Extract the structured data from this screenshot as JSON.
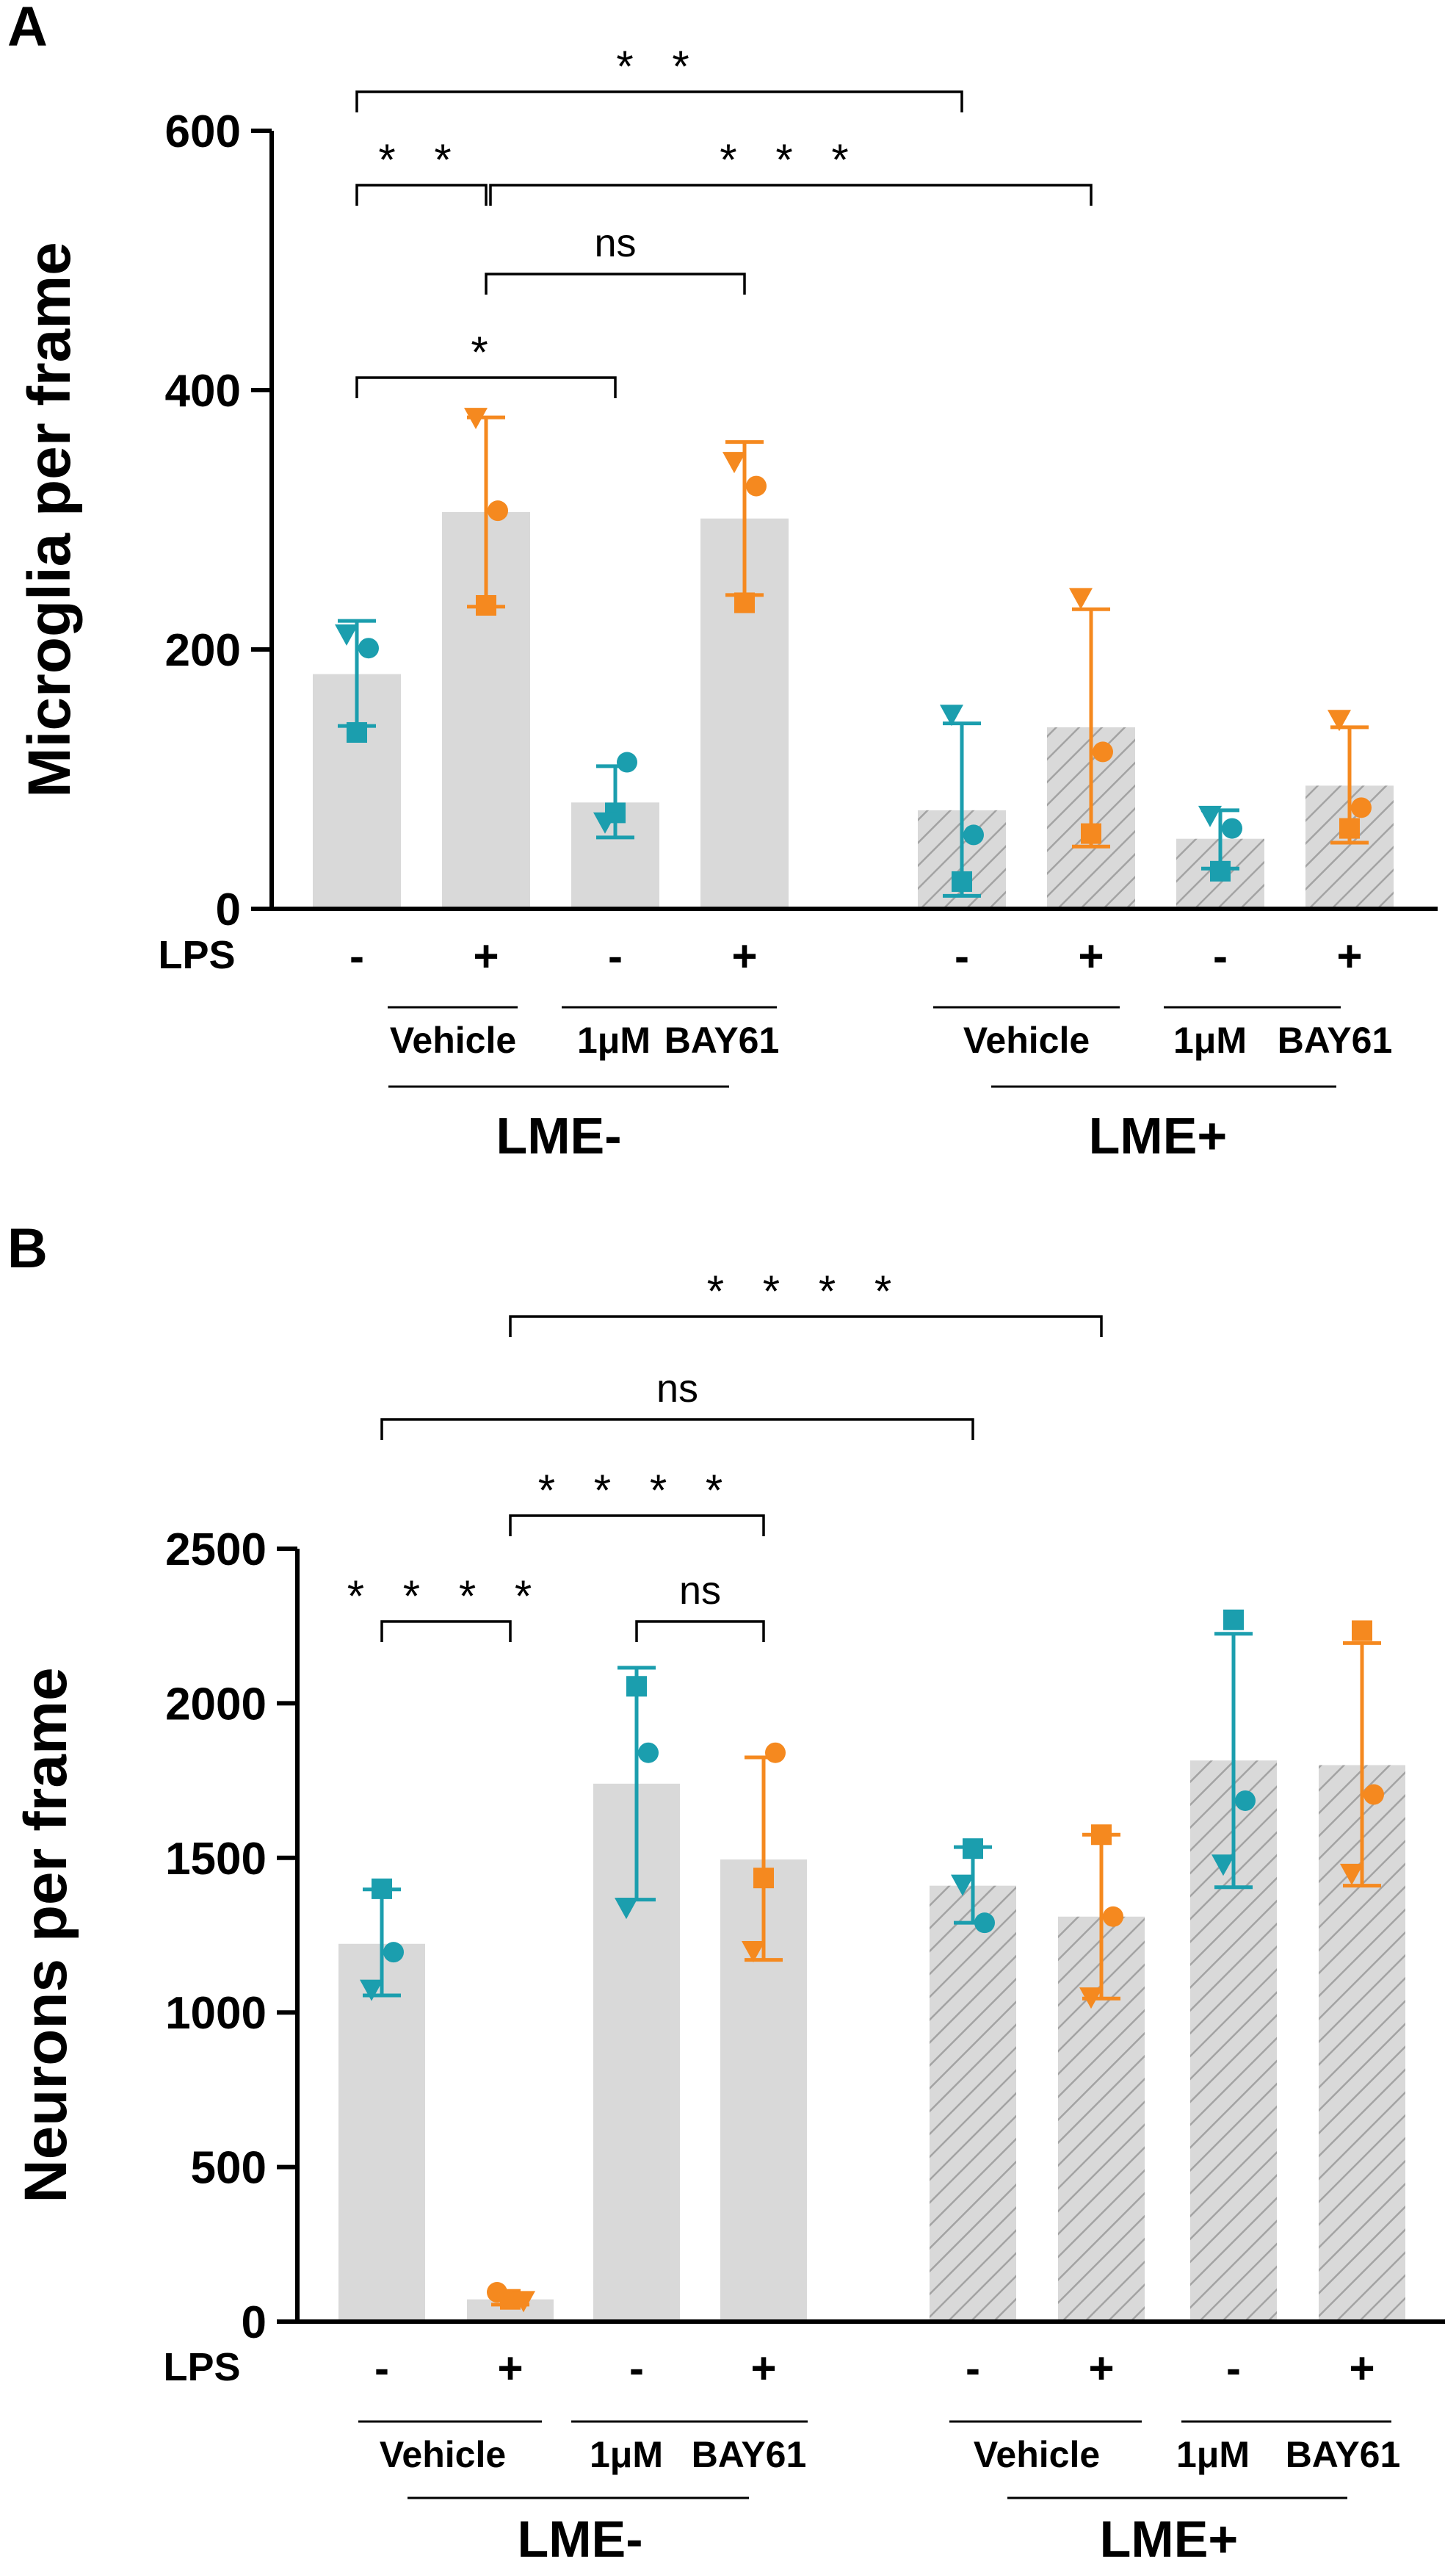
{
  "colors": {
    "cyan": "#1b9eae",
    "orange": "#f5891f",
    "bar_fill": "#d9d9d9",
    "hatch_line": "#a3a3a3",
    "axis": "#000000"
  },
  "chart_data": [
    {
      "id": "A",
      "panel_label": "A",
      "type": "bar",
      "ylabel": "Microglia per frame",
      "ylim": [
        0,
        600
      ],
      "yticks": [
        "0",
        "200",
        "400",
        "600"
      ],
      "lps_label": "LPS",
      "lps_signs": [
        "-",
        "+",
        "-",
        "+",
        "-",
        "+",
        "-",
        "+"
      ],
      "treatment_labels": [
        "Vehicle",
        "1μM",
        "BAY61",
        "Vehicle",
        "1μM",
        "BAY61"
      ],
      "group_labels": [
        "LME-",
        "LME+"
      ],
      "bars": [
        {
          "mean": 181,
          "sd_low": 141,
          "sd_high": 222,
          "color": "cyan",
          "hatched": false,
          "points": [
            {
              "shape": "triangle",
              "v": 212
            },
            {
              "shape": "circle",
              "v": 201
            },
            {
              "shape": "square",
              "v": 136
            }
          ]
        },
        {
          "mean": 306,
          "sd_low": 233,
          "sd_high": 379,
          "color": "orange",
          "hatched": false,
          "points": [
            {
              "shape": "triangle",
              "v": 379
            },
            {
              "shape": "circle",
              "v": 307
            },
            {
              "shape": "square",
              "v": 234
            }
          ]
        },
        {
          "mean": 82,
          "sd_low": 55,
          "sd_high": 110,
          "color": "cyan",
          "hatched": false,
          "points": [
            {
              "shape": "circle",
              "v": 113
            },
            {
              "shape": "square",
              "v": 74
            },
            {
              "shape": "triangle",
              "v": 67
            }
          ]
        },
        {
          "mean": 301,
          "sd_low": 242,
          "sd_high": 360,
          "color": "orange",
          "hatched": false,
          "points": [
            {
              "shape": "triangle",
              "v": 345
            },
            {
              "shape": "circle",
              "v": 326
            },
            {
              "shape": "square",
              "v": 236
            }
          ]
        },
        {
          "mean": 76,
          "sd_low": 10,
          "sd_high": 143,
          "color": "cyan",
          "hatched": true,
          "points": [
            {
              "shape": "triangle",
              "v": 150
            },
            {
              "shape": "circle",
              "v": 57
            },
            {
              "shape": "square",
              "v": 21
            }
          ]
        },
        {
          "mean": 140,
          "sd_low": 48,
          "sd_high": 231,
          "color": "orange",
          "hatched": true,
          "points": [
            {
              "shape": "triangle",
              "v": 240
            },
            {
              "shape": "circle",
              "v": 121
            },
            {
              "shape": "square",
              "v": 58
            }
          ]
        },
        {
          "mean": 54,
          "sd_low": 31,
          "sd_high": 76,
          "color": "cyan",
          "hatched": true,
          "points": [
            {
              "shape": "triangle",
              "v": 72
            },
            {
              "shape": "circle",
              "v": 62
            },
            {
              "shape": "square",
              "v": 29
            }
          ]
        },
        {
          "mean": 95,
          "sd_low": 51,
          "sd_high": 140,
          "color": "orange",
          "hatched": true,
          "points": [
            {
              "shape": "triangle",
              "v": 146
            },
            {
              "shape": "circle",
              "v": 78
            },
            {
              "shape": "square",
              "v": 62
            }
          ]
        }
      ],
      "significance": [
        {
          "from": 0,
          "to": 4,
          "label": "* *"
        },
        {
          "from": 0,
          "to": 1,
          "label": "* *"
        },
        {
          "from": 1,
          "to": 5,
          "label": "* * *"
        },
        {
          "from": 1,
          "to": 3,
          "label": "ns"
        },
        {
          "from": 0,
          "to": 2,
          "label": "*"
        }
      ]
    },
    {
      "id": "B",
      "panel_label": "B",
      "type": "bar",
      "ylabel": "Neurons per frame",
      "ylim": [
        0,
        2500
      ],
      "yticks": [
        "0",
        "500",
        "1000",
        "1500",
        "2000",
        "2500"
      ],
      "lps_label": "LPS",
      "lps_signs": [
        "-",
        "+",
        "-",
        "+",
        "-",
        "+",
        "-",
        "+"
      ],
      "treatment_labels": [
        "Vehicle",
        "1μM",
        "BAY61",
        "Vehicle",
        "1μM",
        "BAY61"
      ],
      "group_labels": [
        "LME-",
        "LME+"
      ],
      "bars": [
        {
          "mean": 1222,
          "sd_low": 1055,
          "sd_high": 1398,
          "color": "cyan",
          "hatched": false,
          "points": [
            {
              "shape": "square",
              "v": 1400
            },
            {
              "shape": "circle",
              "v": 1195
            },
            {
              "shape": "triangle",
              "v": 1075
            }
          ]
        },
        {
          "mean": 72,
          "sd_low": 55,
          "sd_high": 88,
          "color": "orange",
          "hatched": false,
          "points": [
            {
              "shape": "circle",
              "v": 95
            },
            {
              "shape": "square",
              "v": 72
            },
            {
              "shape": "triangle",
              "v": 68
            }
          ]
        },
        {
          "mean": 1740,
          "sd_low": 1365,
          "sd_high": 2115,
          "color": "cyan",
          "hatched": false,
          "points": [
            {
              "shape": "square",
              "v": 2055
            },
            {
              "shape": "circle",
              "v": 1840
            },
            {
              "shape": "triangle",
              "v": 1340
            }
          ]
        },
        {
          "mean": 1495,
          "sd_low": 1170,
          "sd_high": 1825,
          "color": "orange",
          "hatched": false,
          "points": [
            {
              "shape": "circle",
              "v": 1840
            },
            {
              "shape": "square",
              "v": 1435
            },
            {
              "shape": "triangle",
              "v": 1200
            }
          ]
        },
        {
          "mean": 1410,
          "sd_low": 1290,
          "sd_high": 1535,
          "color": "cyan",
          "hatched": true,
          "points": [
            {
              "shape": "square",
              "v": 1530
            },
            {
              "shape": "triangle",
              "v": 1415
            },
            {
              "shape": "circle",
              "v": 1290
            }
          ]
        },
        {
          "mean": 1310,
          "sd_low": 1045,
          "sd_high": 1575,
          "color": "orange",
          "hatched": true,
          "points": [
            {
              "shape": "square",
              "v": 1575
            },
            {
              "shape": "circle",
              "v": 1310
            },
            {
              "shape": "triangle",
              "v": 1050
            }
          ]
        },
        {
          "mean": 1815,
          "sd_low": 1405,
          "sd_high": 2225,
          "color": "cyan",
          "hatched": true,
          "points": [
            {
              "shape": "square",
              "v": 2270
            },
            {
              "shape": "circle",
              "v": 1685
            },
            {
              "shape": "triangle",
              "v": 1480
            }
          ]
        },
        {
          "mean": 1800,
          "sd_low": 1410,
          "sd_high": 2195,
          "color": "orange",
          "hatched": true,
          "points": [
            {
              "shape": "square",
              "v": 2235
            },
            {
              "shape": "circle",
              "v": 1705
            },
            {
              "shape": "triangle",
              "v": 1450
            }
          ]
        }
      ],
      "significance": [
        {
          "from": 1,
          "to": 5,
          "label": "* * * *"
        },
        {
          "from": 0,
          "to": 4,
          "label": "ns"
        },
        {
          "from": 1,
          "to": 3,
          "label": "* * * *"
        },
        {
          "from": 0,
          "to": 1,
          "label": "* * * *"
        },
        {
          "from": 2,
          "to": 3,
          "label": "ns"
        }
      ]
    }
  ]
}
